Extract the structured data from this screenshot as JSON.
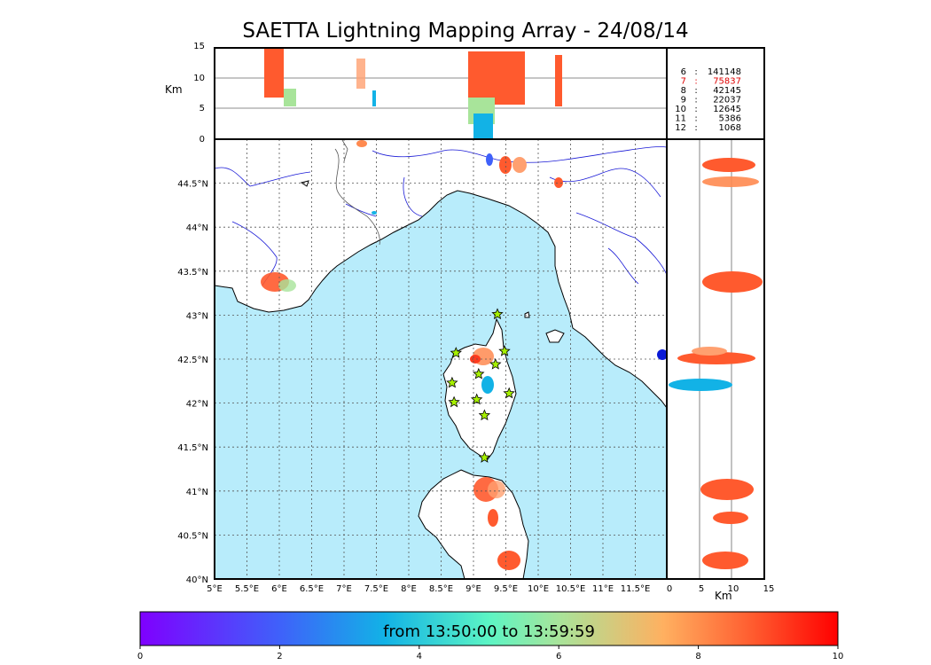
{
  "title": "SAETTA Lightning Mapping Array - 24/08/14",
  "altitude_panel": {
    "ylabel": "Km",
    "yticks": [
      "15",
      "10",
      "5",
      "0"
    ]
  },
  "side_panel": {
    "xlabel": "Km",
    "xticks": [
      "0",
      "5",
      "10",
      "15"
    ]
  },
  "stats": [
    {
      "num": "6",
      "count": "141148",
      "color": "#000000"
    },
    {
      "num": "7",
      "count": "75837",
      "color": "#e00000"
    },
    {
      "num": "8",
      "count": "42145",
      "color": "#000000"
    },
    {
      "num": "9",
      "count": "22037",
      "color": "#000000"
    },
    {
      "num": "10",
      "count": "12645",
      "color": "#000000"
    },
    {
      "num": "11",
      "count": "5386",
      "color": "#000000"
    },
    {
      "num": "12",
      "count": "1068",
      "color": "#000000"
    }
  ],
  "map": {
    "lon_ticks": [
      "5°E",
      "5.5°E",
      "6°E",
      "6.5°E",
      "7°E",
      "7.5°E",
      "8°E",
      "8.5°E",
      "9°E",
      "9.5°E",
      "10°E",
      "10.5°E",
      "11°E",
      "11.5°E"
    ],
    "lat_ticks": [
      "44.5°N",
      "44°N",
      "43.5°N",
      "43°N",
      "42.5°N",
      "42°N",
      "41.5°N",
      "41°N",
      "40.5°N",
      "40°N"
    ],
    "sea_color": "#b8ecfb",
    "stations": [
      {
        "lon": 9.37,
        "lat": 43.01
      },
      {
        "lon": 8.73,
        "lat": 42.57
      },
      {
        "lon": 9.48,
        "lat": 42.59
      },
      {
        "lon": 9.34,
        "lat": 42.44
      },
      {
        "lon": 9.08,
        "lat": 42.33
      },
      {
        "lon": 8.67,
        "lat": 42.23
      },
      {
        "lon": 9.55,
        "lat": 42.11
      },
      {
        "lon": 8.7,
        "lat": 42.01
      },
      {
        "lon": 9.05,
        "lat": 42.04
      },
      {
        "lon": 9.17,
        "lat": 41.86
      },
      {
        "lon": 9.17,
        "lat": 41.38
      }
    ]
  },
  "colorbar": {
    "label": "from 13:50:00 to 13:59:59",
    "ticks": [
      "0",
      "2",
      "4",
      "6",
      "8",
      "10"
    ]
  }
}
